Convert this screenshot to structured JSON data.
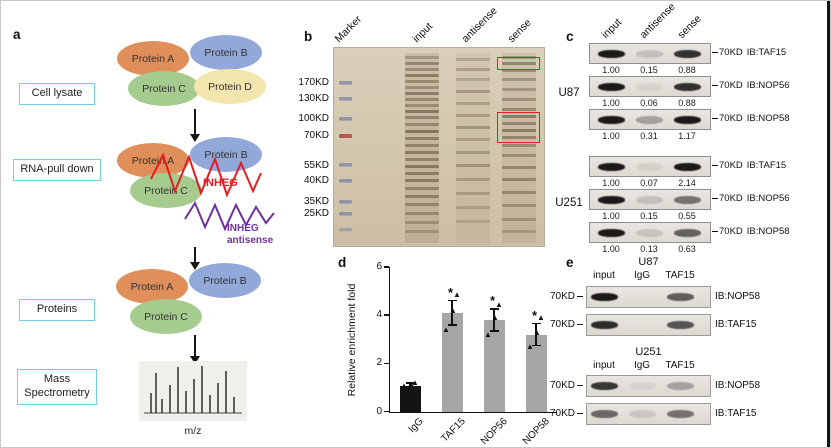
{
  "panel_a": {
    "label": "a",
    "steps": [
      "Cell lysate",
      "RNA-pull down",
      "Proteins",
      "Mass Spectrometry"
    ],
    "proteins": {
      "a": "Protein A",
      "b": "Protein B",
      "c": "Protein C",
      "d": "Protein D"
    },
    "rna": {
      "sense": "INHEG",
      "antisense": "INHEG antisense"
    },
    "ms_axis": "m/z",
    "colors": {
      "protein_a": "#E08F5A",
      "protein_b": "#92A8D8",
      "protein_c": "#A6CB8E",
      "protein_d": "#F3E5AE",
      "box_border": "#74CFE0",
      "sense_rna": "#E02020",
      "antisense_rna": "#7030A0"
    }
  },
  "panel_b": {
    "label": "b",
    "lane_labels": [
      "Marker",
      "input",
      "antisense",
      "sense"
    ],
    "mw_labels": [
      "170KD",
      "130KD",
      "100KD",
      "70KD",
      "55KD",
      "40KD",
      "35KD",
      "25KD"
    ],
    "highlight_box_color": "#D5281E"
  },
  "panel_c": {
    "label": "c",
    "lane_labels": [
      "input",
      "antisense",
      "sense"
    ],
    "groups": [
      {
        "name": "U87",
        "blots": [
          {
            "mw": "70KD",
            "antibody": "IB:TAF15",
            "values": [
              "1.00",
              "0.15",
              "0.88"
            ]
          },
          {
            "mw": "70KD",
            "antibody": "IB:NOP56",
            "values": [
              "1.00",
              "0.06",
              "0.88"
            ]
          },
          {
            "mw": "70KD",
            "antibody": "IB:NOP58",
            "values": [
              "1.00",
              "0.31",
              "1.17"
            ]
          }
        ]
      },
      {
        "name": "U251",
        "blots": [
          {
            "mw": "70KD",
            "antibody": "IB:TAF15",
            "values": [
              "1.00",
              "0.07",
              "2.14"
            ]
          },
          {
            "mw": "70KD",
            "antibody": "IB:NOP56",
            "values": [
              "1.00",
              "0.15",
              "0.55"
            ]
          },
          {
            "mw": "70KD",
            "antibody": "IB:NOP58",
            "values": [
              "1.00",
              "0.13",
              "0.63"
            ]
          }
        ]
      }
    ]
  },
  "panel_d": {
    "label": "d",
    "chart_data": {
      "type": "bar",
      "categories": [
        "IgG",
        "TAF15",
        "NOP56",
        "NOP58"
      ],
      "values": [
        1.1,
        4.1,
        3.8,
        3.2
      ],
      "errors": [
        0.08,
        0.5,
        0.45,
        0.45
      ],
      "points": [
        [
          1.0,
          1.08,
          1.15
        ],
        [
          3.35,
          4.15,
          4.8
        ],
        [
          3.15,
          3.85,
          4.4
        ],
        [
          2.65,
          3.2,
          3.85
        ]
      ],
      "significance": [
        "",
        "*",
        "*",
        "*"
      ],
      "bar_colors": [
        "#141414",
        "#A6A6A6",
        "#A6A6A6",
        "#A6A6A6"
      ],
      "title": "",
      "xlabel": "",
      "ylabel": "Relative enrichment fold",
      "ylim": [
        0,
        6
      ],
      "yticks": [
        0,
        2,
        4,
        6
      ],
      "grid": false,
      "legend": false
    }
  },
  "panel_e": {
    "label": "e",
    "groups": [
      {
        "name": "U87",
        "lane_labels": [
          "input",
          "IgG",
          "TAF15"
        ],
        "blots": [
          {
            "mw": "70KD",
            "antibody": "IB:NOP58",
            "band_opacities": [
              1,
              0,
              0.65
            ]
          },
          {
            "mw": "70KD",
            "antibody": "IB:TAF15",
            "band_opacities": [
              0.9,
              0,
              0.7
            ]
          }
        ]
      },
      {
        "name": "U251",
        "lane_labels": [
          "input",
          "IgG",
          "TAF15"
        ],
        "blots": [
          {
            "mw": "70KD",
            "antibody": "IB:NOP58",
            "band_opacities": [
              0.85,
              0.06,
              0.3
            ]
          },
          {
            "mw": "70KD",
            "antibody": "IB:TAF15",
            "band_opacities": [
              0.6,
              0.12,
              0.55
            ]
          }
        ]
      }
    ]
  }
}
